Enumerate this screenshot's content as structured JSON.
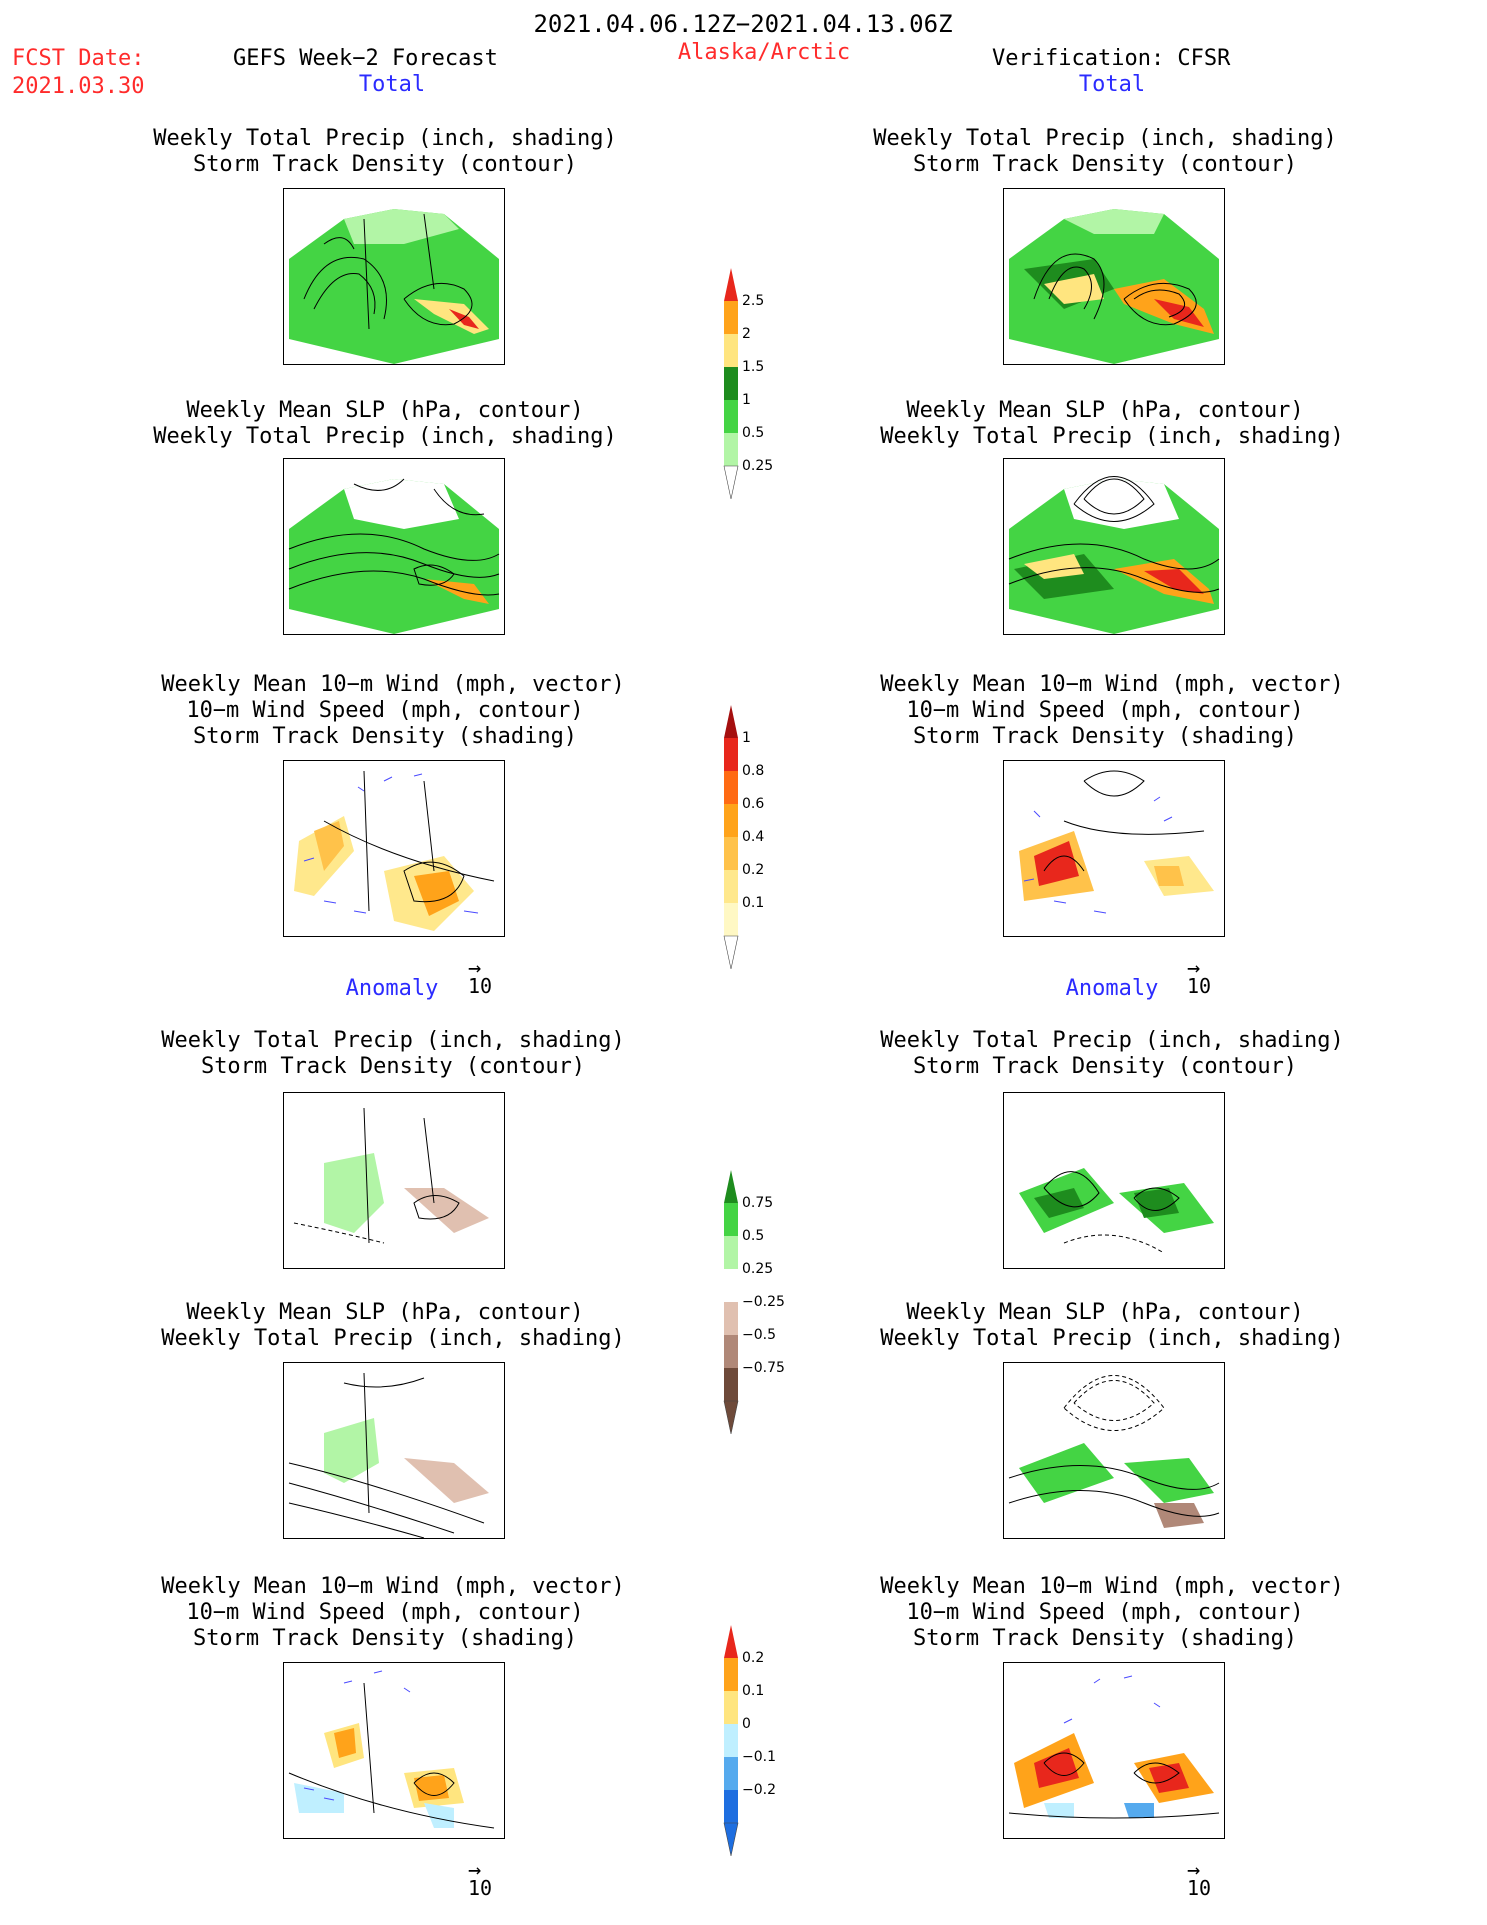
{
  "header": {
    "period": "2021.04.06.12Z−2021.04.13.06Z",
    "fcst_label": "FCST Date:",
    "fcst_date": "2021.03.30",
    "forecast_title": "GEFS Week−2 Forecast",
    "region": "Alaska/Arctic",
    "verification": "Verification: CFSR"
  },
  "sections": {
    "total": "Total",
    "anomaly": "Anomaly"
  },
  "titles": {
    "precip_track": [
      "Weekly Total Precip (inch, shading)",
      "Storm Track Density (contour)"
    ],
    "slp_precip": [
      "Weekly Mean SLP (hPa, contour)",
      "Weekly Total Precip (inch, shading)"
    ],
    "wind_track": [
      "Weekly Mean 10−m Wind (mph, vector)",
      "10−m Wind Speed (mph, contour)",
      "Storm Track Density (shading)"
    ]
  },
  "vector_ref": "10",
  "colorbars": {
    "precip_total": {
      "labels": [
        "2.5",
        "2",
        "1.5",
        "1",
        "0.5",
        "0.25"
      ],
      "colors": [
        "#e8271c",
        "#ffa31a",
        "#ffe57f",
        "#1e8c1e",
        "#44d444",
        "#b2f5a6"
      ]
    },
    "track_total": {
      "labels": [
        "1",
        "0.8",
        "0.6",
        "0.4",
        "0.2",
        "0.1"
      ],
      "colors": [
        "#a50f0f",
        "#e8271c",
        "#ff6a13",
        "#ffa31a",
        "#ffc24a",
        "#ffe88c",
        "#fff8c4"
      ]
    },
    "precip_anom": {
      "labels": [
        "0.75",
        "0.5",
        "0.25",
        "−0.25",
        "−0.5",
        "−0.75"
      ],
      "colors": [
        "#1e8c1e",
        "#44d444",
        "#b2f5a6",
        "#ffffff",
        "#e0c0b0",
        "#b08878",
        "#6e4a3a"
      ]
    },
    "track_anom": {
      "labels": [
        "0.2",
        "0.1",
        "0",
        "−0.1",
        "−0.2"
      ],
      "colors": [
        "#e8271c",
        "#ffa31a",
        "#ffe57f",
        "#bfefff",
        "#55aaee",
        "#1e6ee0"
      ]
    }
  },
  "legend_colors": {
    "wind_vector": "#4a4aff",
    "contour": "#000000",
    "red_text": "#ff2b2b",
    "blue_text": "#2b2bff"
  }
}
